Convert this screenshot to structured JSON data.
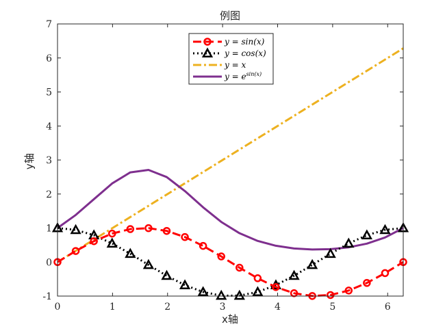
{
  "chart_data": {
    "type": "line",
    "title": "例图",
    "xlabel": "x轴",
    "ylabel": "y轴",
    "xlim": [
      0,
      6.283
    ],
    "ylim": [
      -1,
      7
    ],
    "x_ticks": [
      0,
      1,
      2,
      3,
      4,
      5,
      6
    ],
    "y_ticks": [
      -1,
      0,
      1,
      2,
      3,
      4,
      5,
      6,
      7
    ],
    "grid": false,
    "legend_position": "top-center",
    "x": [
      0,
      0.3307,
      0.6614,
      0.9921,
      1.3228,
      1.6535,
      1.9842,
      2.3149,
      2.6456,
      2.9763,
      3.3069,
      3.6376,
      3.9683,
      4.299,
      4.6297,
      4.9604,
      5.2911,
      5.6218,
      5.9525,
      6.2832
    ],
    "series": [
      {
        "name": "y = sin(x)",
        "legend_main": "y = sin(x)",
        "legend_sup": "",
        "color": "#ff0000",
        "dash": "12 6",
        "marker": "circle",
        "values": [
          0,
          0.3247,
          0.6142,
          0.8372,
          0.9694,
          0.9966,
          0.9158,
          0.7357,
          0.4759,
          0.1646,
          -0.1646,
          -0.4759,
          -0.7357,
          -0.9158,
          -0.9966,
          -0.9694,
          -0.8372,
          -0.6142,
          -0.3247,
          0
        ]
      },
      {
        "name": "y = cos(x)",
        "legend_main": "y = cos(x)",
        "legend_sup": "",
        "color": "#000000",
        "dash": "2 4",
        "marker": "triangle",
        "values": [
          1,
          0.9458,
          0.7891,
          0.5469,
          0.2455,
          -0.0826,
          -0.4017,
          -0.6773,
          -0.8795,
          -0.9864,
          -0.9864,
          -0.8795,
          -0.6773,
          -0.4017,
          -0.0826,
          0.2455,
          0.5469,
          0.7891,
          0.9458,
          1
        ]
      },
      {
        "name": "y = x",
        "legend_main": "y = x",
        "legend_sup": "",
        "color": "#edb120",
        "dash": "12 4 3 4",
        "marker": "none",
        "values": [
          0,
          0.3307,
          0.6614,
          0.9921,
          1.3228,
          1.6535,
          1.9842,
          2.3149,
          2.6456,
          2.9763,
          3.3069,
          3.6376,
          3.9683,
          4.299,
          4.6297,
          4.9604,
          5.2911,
          5.6218,
          5.9525,
          6.2832
        ]
      },
      {
        "name": "y = e^sin(x)",
        "legend_main": "y = e",
        "legend_sup": "sin(x)",
        "color": "#7e2f8e",
        "dash": "",
        "marker": "none",
        "values": [
          1,
          1.3836,
          1.8481,
          2.3098,
          2.6363,
          2.7091,
          2.4987,
          2.0869,
          1.6095,
          1.1789,
          0.8482,
          0.6213,
          0.4792,
          0.4002,
          0.3691,
          0.3793,
          0.4329,
          0.5411,
          0.7228,
          1
        ]
      }
    ]
  }
}
